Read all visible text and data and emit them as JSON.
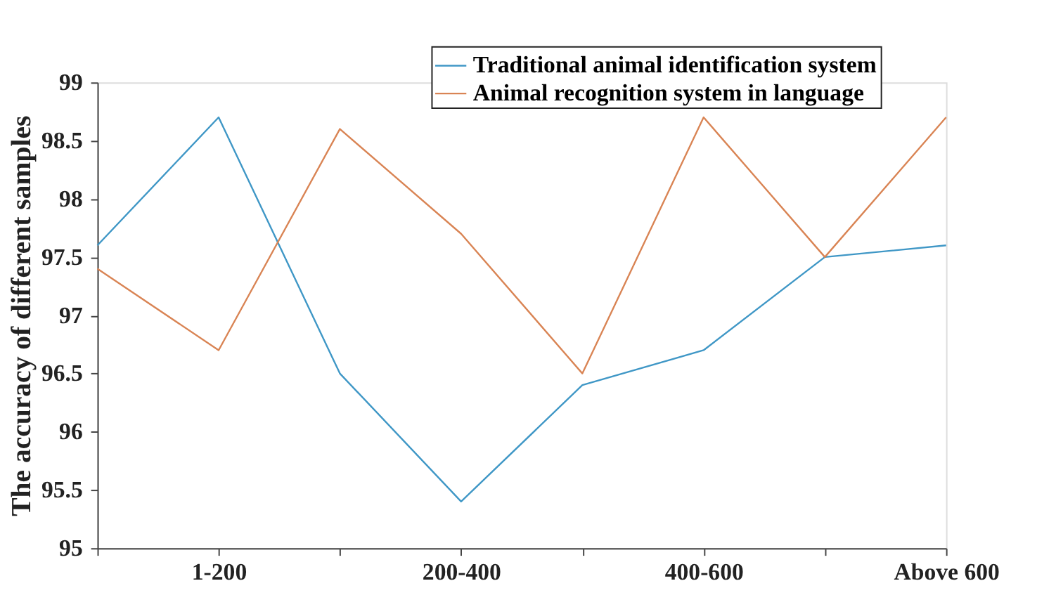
{
  "chart_data": {
    "type": "line",
    "ylabel": "The accuracy of different samples",
    "categories": [
      null,
      "1-200",
      null,
      "200-400",
      null,
      "400-600",
      null,
      "Above 600"
    ],
    "series": [
      {
        "name": "Traditional animal identification system",
        "color": "#3f97c6",
        "values": [
          97.6,
          98.7,
          96.5,
          95.4,
          96.4,
          96.7,
          97.5,
          97.6
        ]
      },
      {
        "name": "Animal recognition system in language",
        "color": "#d98454",
        "values": [
          97.4,
          96.7,
          98.6,
          97.7,
          96.5,
          98.7,
          97.5,
          98.7
        ]
      }
    ],
    "ylim": [
      95,
      99
    ],
    "yticks": [
      95,
      95.5,
      96,
      96.5,
      97,
      97.5,
      98,
      98.5,
      99
    ],
    "grid": false,
    "legend": "top right",
    "marker": "none",
    "line_style": "solid"
  }
}
